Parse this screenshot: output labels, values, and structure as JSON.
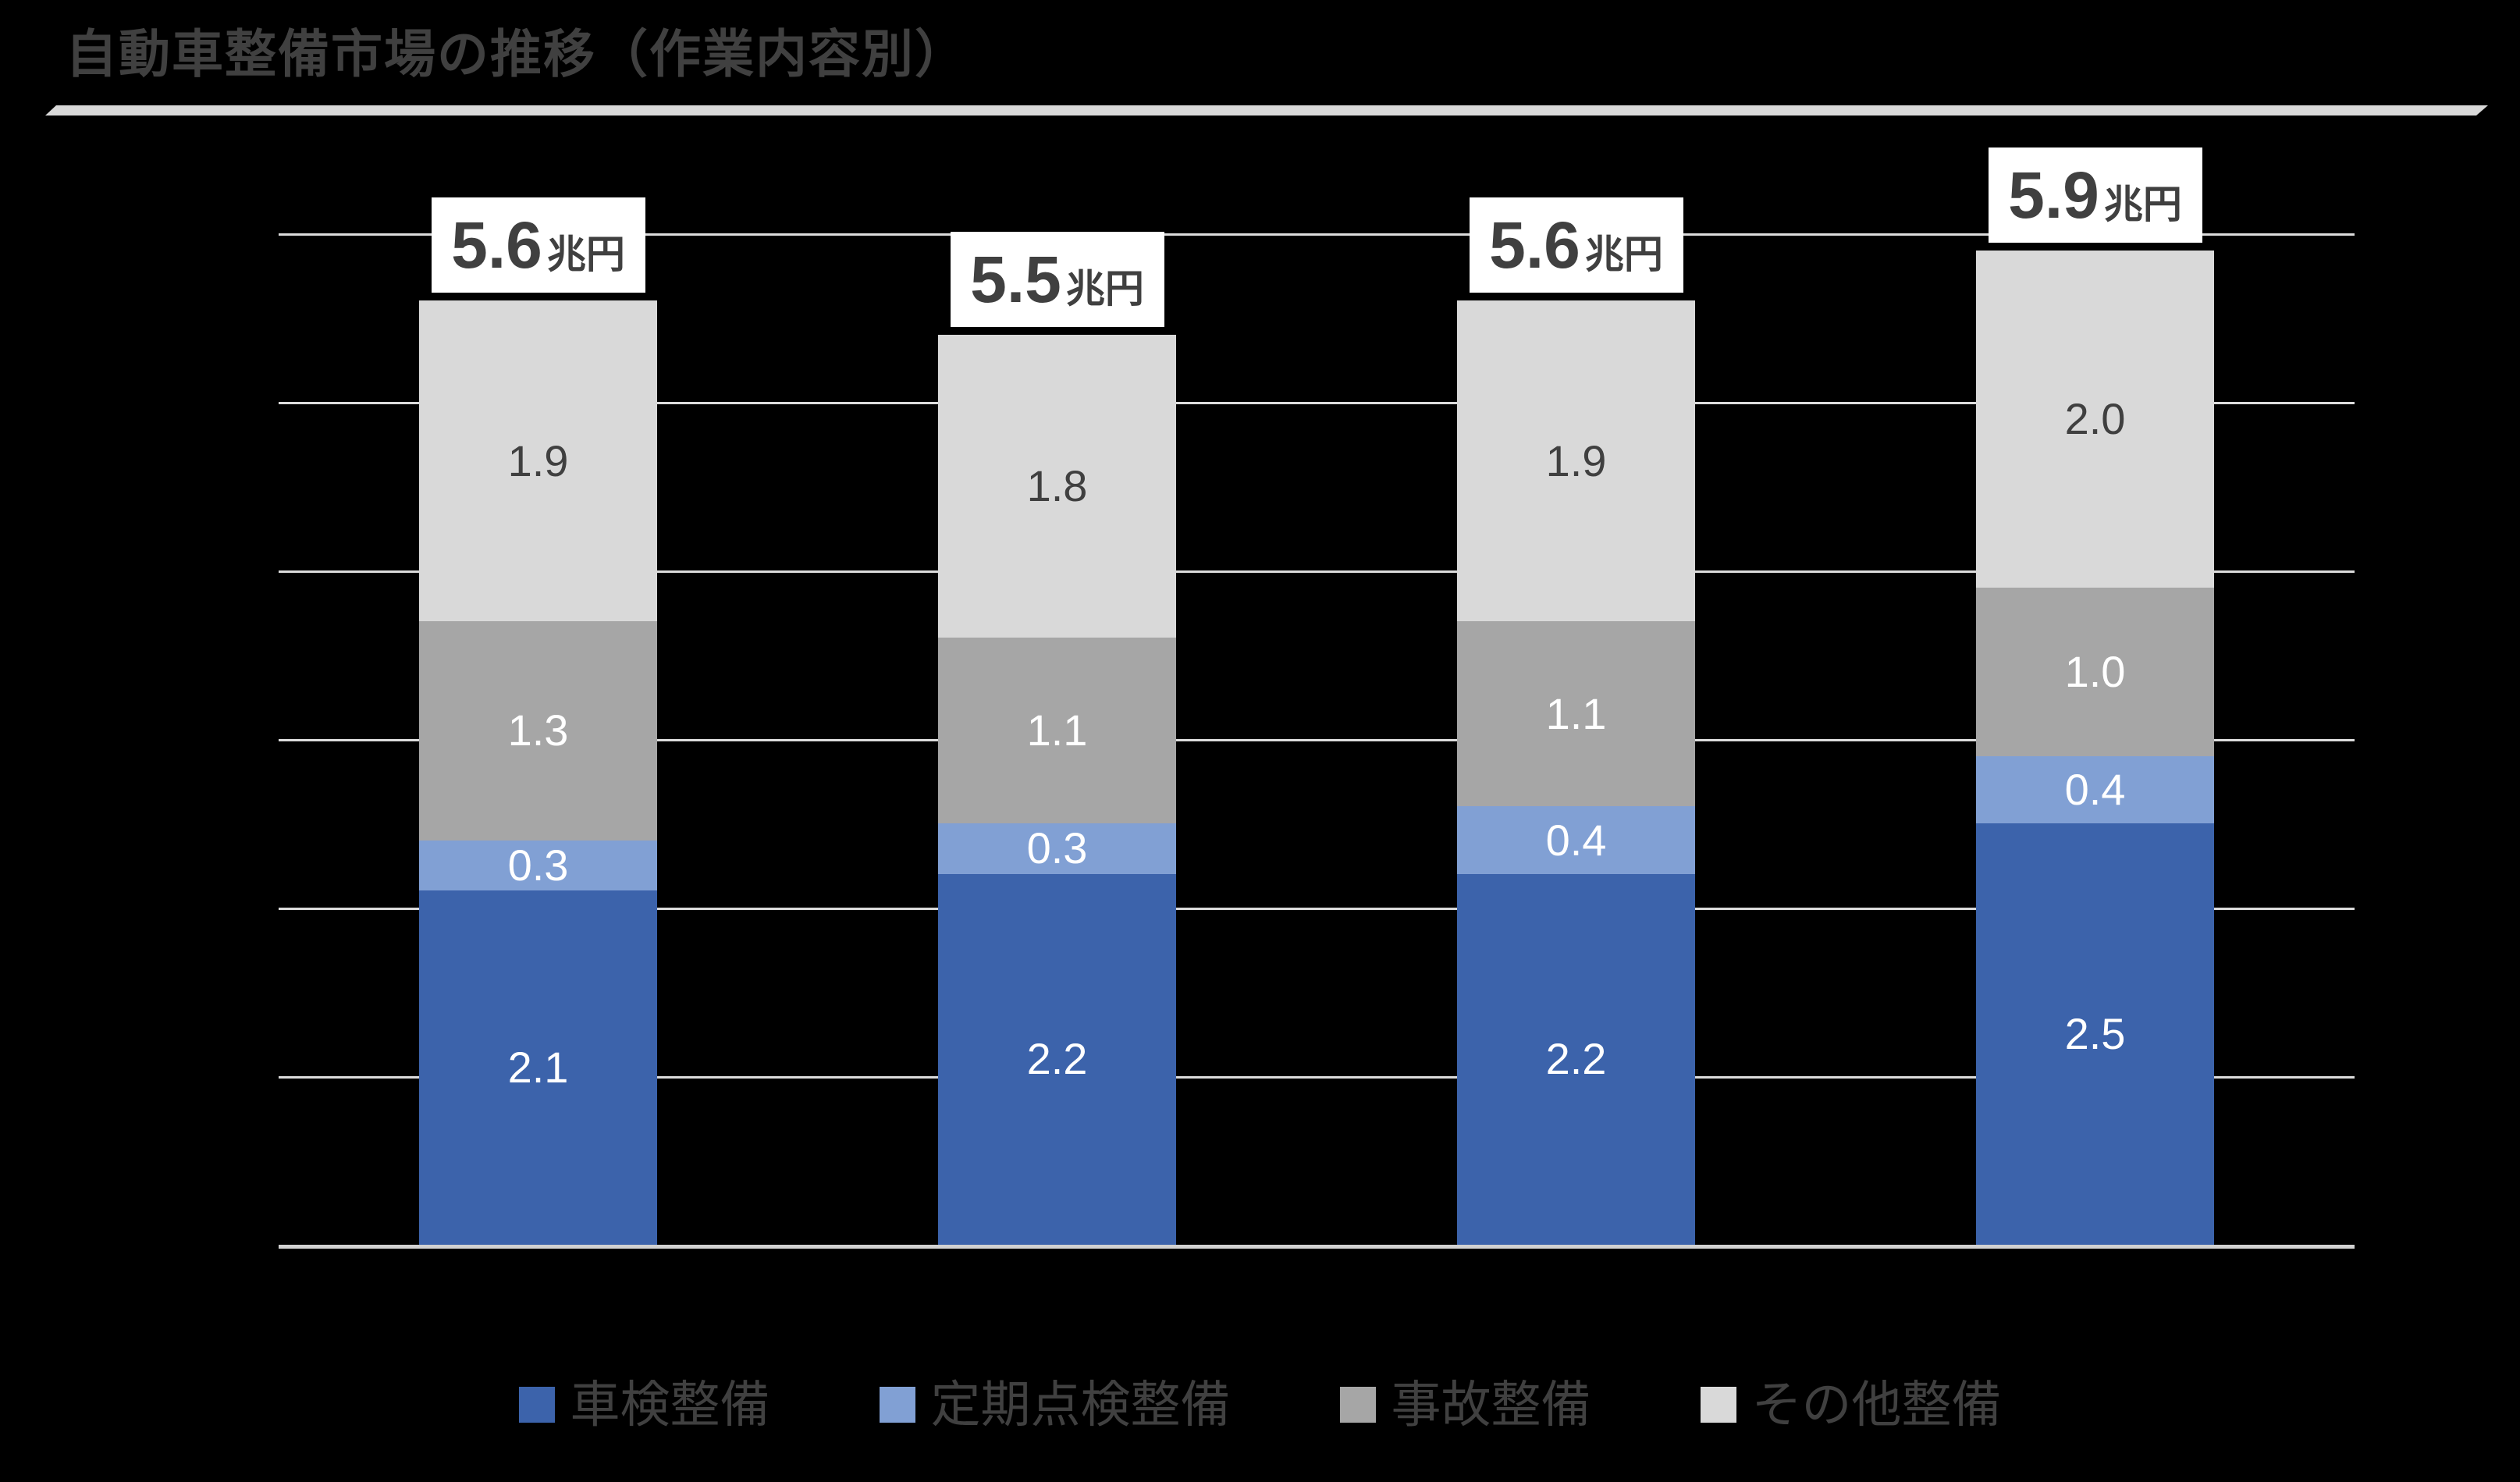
{
  "page": {
    "background_color": "#000000"
  },
  "header": {
    "divider_color": "#D9D9D9"
  },
  "chart_data": {
    "type": "bar",
    "stacked": true,
    "title": "自動車整備市場の推移（作業内容別）",
    "title_color": "#404040",
    "series": [
      {
        "name": "車検整備",
        "color": "#3C63AB",
        "label_color": "#FFFFFF",
        "values": [
          2.1,
          2.2,
          2.2,
          2.5
        ]
      },
      {
        "name": "定期点検整備",
        "color": "#81A0D4",
        "label_color": "#FFFFFF",
        "values": [
          0.3,
          0.3,
          0.4,
          0.4
        ]
      },
      {
        "name": "事故整備",
        "color": "#A6A6A6",
        "label_color": "#FFFFFF",
        "values": [
          1.3,
          1.1,
          1.1,
          1.0
        ]
      },
      {
        "name": "その他整備",
        "color": "#D9D9D9",
        "label_color": "#404040",
        "values": [
          1.9,
          1.8,
          1.9,
          2.0
        ]
      }
    ],
    "totals": [
      {
        "value": "5.6",
        "unit": "兆円"
      },
      {
        "value": "5.5",
        "unit": "兆円"
      },
      {
        "value": "5.6",
        "unit": "兆円"
      },
      {
        "value": "5.9",
        "unit": "兆円"
      }
    ],
    "total_box": {
      "background": "#FFFFFF",
      "text_color": "#404040"
    },
    "ylim": [
      0,
      6
    ],
    "gridline_interval": 1,
    "gridlines": "on",
    "grid_color": "#DCDCDC",
    "xlabel": "",
    "ylabel": "",
    "legend_position": "bottom"
  }
}
